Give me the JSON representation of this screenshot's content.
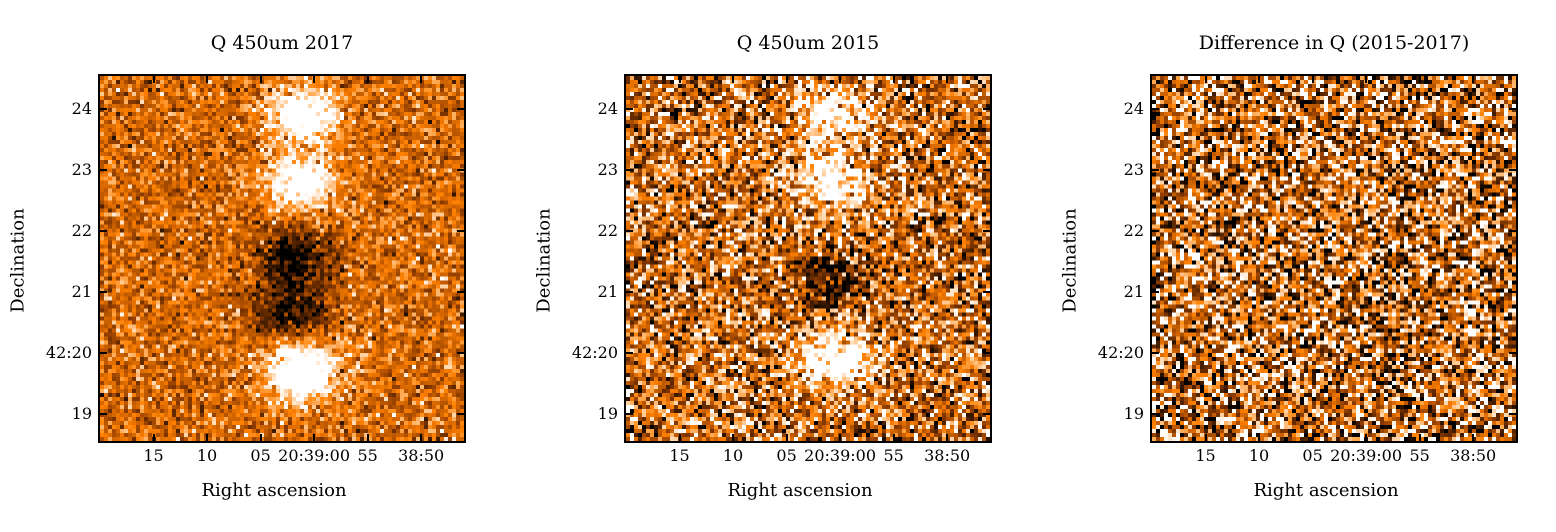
{
  "chart_data": [
    {
      "type": "heatmap",
      "title": "Q 450um 2017",
      "xlabel": "Right ascension",
      "ylabel": "Declination",
      "x_ticks": [
        "15",
        "10",
        "05",
        "20:39:00",
        "55",
        "38:50"
      ],
      "y_ticks": [
        "24",
        "23",
        "22",
        "21",
        "42:20",
        "19"
      ],
      "colormap": [
        "#000000",
        "#8a3a00",
        "#ff8000",
        "#ffffff"
      ],
      "noise_level": 0.32,
      "features": [
        {
          "kind": "bright",
          "dec": 23.9,
          "ra_sec": 1.0,
          "strength": 0.75
        },
        {
          "kind": "bright",
          "dec": 22.8,
          "ra_sec": 1.3,
          "strength": 0.7
        },
        {
          "kind": "dark",
          "dec": 21.6,
          "ra_sec": 2.0,
          "strength": 0.6
        },
        {
          "kind": "dark",
          "dec": 20.7,
          "ra_sec": 2.3,
          "strength": 0.55
        },
        {
          "kind": "bright",
          "dec": 19.7,
          "ra_sec": 1.2,
          "strength": 0.9
        }
      ]
    },
    {
      "type": "heatmap",
      "title": "Q 450um 2015",
      "xlabel": "Right ascension",
      "ylabel": "Declination",
      "x_ticks": [
        "15",
        "10",
        "05",
        "20:39:00",
        "55",
        "38:50"
      ],
      "y_ticks": [
        "24",
        "23",
        "22",
        "21",
        "42:20",
        "19"
      ],
      "colormap": [
        "#000000",
        "#8a3a00",
        "#ff8000",
        "#ffffff"
      ],
      "noise_level": 0.62,
      "features": [
        {
          "kind": "bright",
          "dec": 23.9,
          "ra_sec": 0.8,
          "strength": 0.7
        },
        {
          "kind": "bright",
          "dec": 22.8,
          "ra_sec": 0.7,
          "strength": 0.7
        },
        {
          "kind": "dark",
          "dec": 21.2,
          "ra_sec": 0.8,
          "strength": 0.55
        },
        {
          "kind": "bright",
          "dec": 19.9,
          "ra_sec": 0.5,
          "strength": 0.9
        }
      ]
    },
    {
      "type": "heatmap",
      "title": "Difference in Q (2015-2017)",
      "xlabel": "Right ascension",
      "ylabel": "Declination",
      "x_ticks": [
        "15",
        "10",
        "05",
        "20:39:00",
        "55",
        "38:50"
      ],
      "y_ticks": [
        "24",
        "23",
        "22",
        "21",
        "42:20",
        "19"
      ],
      "colormap": [
        "#000000",
        "#8a3a00",
        "#ff8000",
        "#ffffff"
      ],
      "noise_level": 0.8,
      "features": []
    }
  ]
}
